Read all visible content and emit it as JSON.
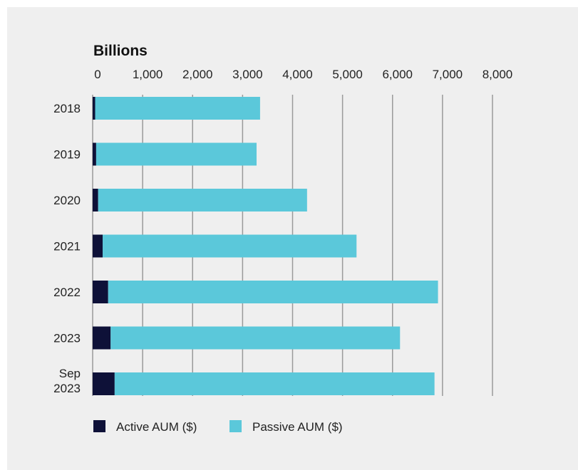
{
  "chart_data": {
    "type": "bar",
    "orientation": "horizontal",
    "stacked": true,
    "unit_label": "Billions",
    "xticks": [
      0,
      1000,
      2000,
      3000,
      4000,
      5000,
      6000,
      7000,
      8000
    ],
    "xtick_labels": [
      "0",
      "1,000",
      "2,000",
      "3,000",
      "4,000",
      "5,000",
      "6,000",
      "7,000",
      "8,000"
    ],
    "xlim": [
      0,
      8000
    ],
    "grid": true,
    "categories": [
      [
        "2018"
      ],
      [
        "2019"
      ],
      [
        "2020"
      ],
      [
        "2021"
      ],
      [
        "2022"
      ],
      [
        "2023"
      ],
      [
        "Sep",
        "2023"
      ]
    ],
    "series": [
      {
        "name": "Active AUM ($)",
        "color": "#0e1138",
        "values": [
          50,
          70,
          110,
          200,
          310,
          360,
          440
        ]
      },
      {
        "name": "Passive AUM ($)",
        "color": "#5bc8da",
        "values": [
          3300,
          3210,
          4180,
          5080,
          6600,
          5790,
          6400
        ]
      }
    ],
    "legend_position": "bottom-left"
  }
}
